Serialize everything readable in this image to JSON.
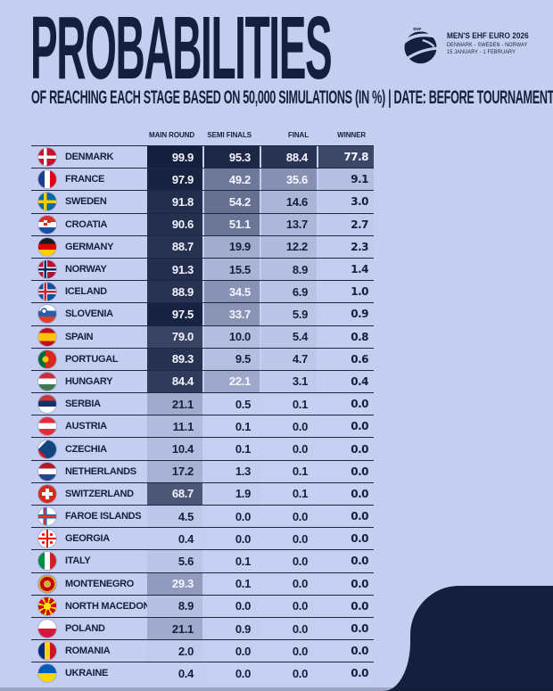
{
  "brand": {
    "name": "MEN'S EHF EURO 2026",
    "hosts": "DENMARK - SWEDEN - NORWAY",
    "dates": "15 JANUARY - 1 FEBRUARY",
    "badge": "EHF"
  },
  "colors": {
    "background": "#c5cdf1",
    "ink": "#141f3d",
    "heat_low": "#c6cff2",
    "heat_high": "#141f3e",
    "white_text": "#f3f6ff",
    "white_text_threshold": 22
  },
  "chart_data": {
    "type": "heatmap",
    "title": "PROBABILITIES",
    "subtitle": "OF REACHING EACH STAGE BASED ON 50,000 SIMULATIONS (IN %) | DATE: BEFORE TOURNAMENT",
    "unit": "%",
    "value_range": [
      0,
      100
    ],
    "columns": [
      "MAIN ROUND",
      "SEMI FINALS",
      "FINAL",
      "WINNER"
    ],
    "rows": [
      {
        "label": "DENMARK",
        "flag": "dk",
        "values": [
          99.9,
          95.3,
          88.4,
          77.8
        ]
      },
      {
        "label": "FRANCE",
        "flag": "fr",
        "values": [
          97.9,
          49.2,
          35.6,
          9.1
        ]
      },
      {
        "label": "SWEDEN",
        "flag": "se",
        "values": [
          91.8,
          54.2,
          14.6,
          3.0
        ]
      },
      {
        "label": "CROATIA",
        "flag": "hr",
        "values": [
          90.6,
          51.1,
          13.7,
          2.7
        ]
      },
      {
        "label": "GERMANY",
        "flag": "de",
        "values": [
          88.7,
          19.9,
          12.2,
          2.3
        ]
      },
      {
        "label": "NORWAY",
        "flag": "no",
        "values": [
          91.3,
          15.5,
          8.9,
          1.4
        ]
      },
      {
        "label": "ICELAND",
        "flag": "is",
        "values": [
          88.9,
          34.5,
          6.9,
          1.0
        ]
      },
      {
        "label": "SLOVENIA",
        "flag": "si",
        "values": [
          97.5,
          33.7,
          5.9,
          0.9
        ]
      },
      {
        "label": "SPAIN",
        "flag": "es",
        "values": [
          79.0,
          10.0,
          5.4,
          0.8
        ]
      },
      {
        "label": "PORTUGAL",
        "flag": "pt",
        "values": [
          89.3,
          9.5,
          4.7,
          0.6
        ]
      },
      {
        "label": "HUNGARY",
        "flag": "hu",
        "values": [
          84.4,
          22.1,
          3.1,
          0.4
        ]
      },
      {
        "label": "SERBIA",
        "flag": "rs",
        "values": [
          21.1,
          0.5,
          0.1,
          0.0
        ]
      },
      {
        "label": "AUSTRIA",
        "flag": "at",
        "values": [
          11.1,
          0.1,
          0.0,
          0.0
        ]
      },
      {
        "label": "CZECHIA",
        "flag": "cz",
        "values": [
          10.4,
          0.1,
          0.0,
          0.0
        ]
      },
      {
        "label": "NETHERLANDS",
        "flag": "nl",
        "values": [
          17.2,
          1.3,
          0.1,
          0.0
        ]
      },
      {
        "label": "SWITZERLAND",
        "flag": "ch",
        "values": [
          68.7,
          1.9,
          0.1,
          0.0
        ]
      },
      {
        "label": "FAROE ISLANDS",
        "flag": "fo",
        "values": [
          4.5,
          0.0,
          0.0,
          0.0
        ]
      },
      {
        "label": "GEORGIA",
        "flag": "ge",
        "values": [
          0.4,
          0.0,
          0.0,
          0.0
        ]
      },
      {
        "label": "ITALY",
        "flag": "it",
        "values": [
          5.6,
          0.1,
          0.0,
          0.0
        ]
      },
      {
        "label": "MONTENEGRO",
        "flag": "me",
        "values": [
          29.3,
          0.1,
          0.0,
          0.0
        ]
      },
      {
        "label": "NORTH MACEDONIA",
        "flag": "mk",
        "values": [
          8.9,
          0.0,
          0.0,
          0.0
        ]
      },
      {
        "label": "POLAND",
        "flag": "pl",
        "values": [
          21.1,
          0.9,
          0.0,
          0.0
        ]
      },
      {
        "label": "ROMANIA",
        "flag": "ro",
        "values": [
          2.0,
          0.0,
          0.0,
          0.0
        ]
      },
      {
        "label": "UKRAINE",
        "flag": "ua",
        "values": [
          0.4,
          0.0,
          0.0,
          0.0
        ]
      }
    ]
  }
}
